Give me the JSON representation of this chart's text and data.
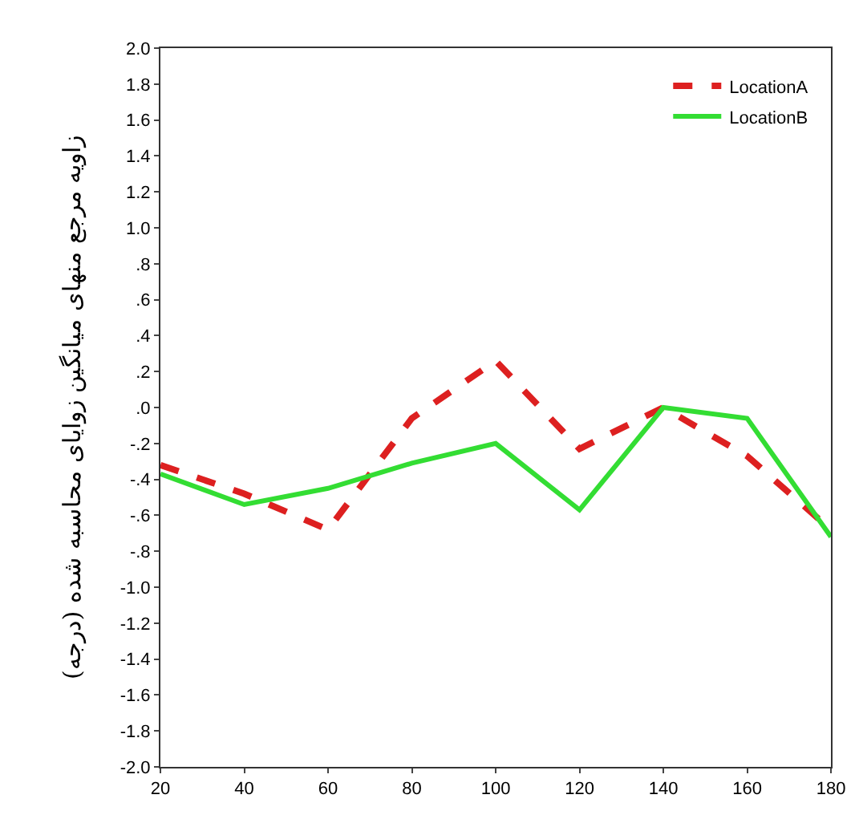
{
  "chart_data": {
    "type": "line",
    "ylabel": "زاویه مرجع منهای میانگین زوایای محاسبه شده (درجه)",
    "x": [
      20,
      40,
      60,
      80,
      100,
      120,
      140,
      160,
      180
    ],
    "series": [
      {
        "name": "LocationA",
        "color": "#dd2020",
        "line_style": "dashed",
        "values": [
          -0.32,
          -0.48,
          -0.68,
          -0.06,
          0.26,
          -0.23,
          0.0,
          -0.27,
          -0.68
        ]
      },
      {
        "name": "LocationB",
        "color": "#33dd33",
        "line_style": "solid",
        "values": [
          -0.37,
          -0.54,
          -0.45,
          -0.31,
          -0.2,
          -0.57,
          0.0,
          -0.06,
          -0.72
        ]
      }
    ],
    "xlim": [
      20,
      180
    ],
    "xticks": [
      20,
      40,
      60,
      80,
      100,
      120,
      140,
      160,
      180
    ],
    "ylim": [
      -2.0,
      2.0
    ],
    "yticks": [
      {
        "value": 2.0,
        "label": "2.0"
      },
      {
        "value": 1.8,
        "label": "1.8"
      },
      {
        "value": 1.6,
        "label": "1.6"
      },
      {
        "value": 1.4,
        "label": "1.4"
      },
      {
        "value": 1.2,
        "label": "1.2"
      },
      {
        "value": 1.0,
        "label": "1.0"
      },
      {
        "value": 0.8,
        "label": ".8"
      },
      {
        "value": 0.6,
        "label": ".6"
      },
      {
        "value": 0.4,
        "label": ".4"
      },
      {
        "value": 0.2,
        "label": ".2"
      },
      {
        "value": 0.0,
        "label": ".0"
      },
      {
        "value": -0.2,
        "label": "-.2"
      },
      {
        "value": -0.4,
        "label": "-.4"
      },
      {
        "value": -0.6,
        "label": "-.6"
      },
      {
        "value": -0.8,
        "label": "-.8"
      },
      {
        "value": -1.0,
        "label": "-1.0"
      },
      {
        "value": -1.2,
        "label": "-1.2"
      },
      {
        "value": -1.4,
        "label": "-1.4"
      },
      {
        "value": -1.6,
        "label": "-1.6"
      },
      {
        "value": -1.8,
        "label": "-1.8"
      },
      {
        "value": -2.0,
        "label": "-2.0"
      }
    ],
    "grid": false,
    "legend": "top right",
    "marker": "none"
  }
}
